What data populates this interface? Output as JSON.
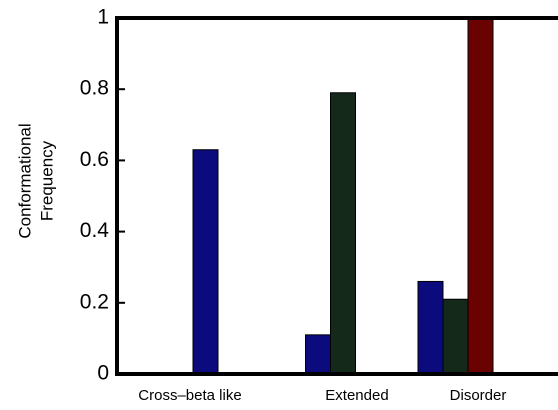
{
  "chart_data": {
    "type": "bar",
    "ylabel": [
      "Conformational",
      "Frequency"
    ],
    "categories": [
      "Cross–beta like",
      "Extended",
      "Disorder"
    ],
    "series": [
      {
        "color": "#0b0b7e",
        "values": [
          0.63,
          0.11,
          0.26
        ]
      },
      {
        "color": "#15291b",
        "values": [
          null,
          0.79,
          0.21
        ]
      },
      {
        "color": "#6a0202",
        "values": [
          null,
          null,
          1
        ]
      }
    ],
    "ylim": [
      0,
      1
    ],
    "yticks": [
      0,
      0.2,
      0.4,
      0.6,
      0.8,
      1
    ]
  }
}
